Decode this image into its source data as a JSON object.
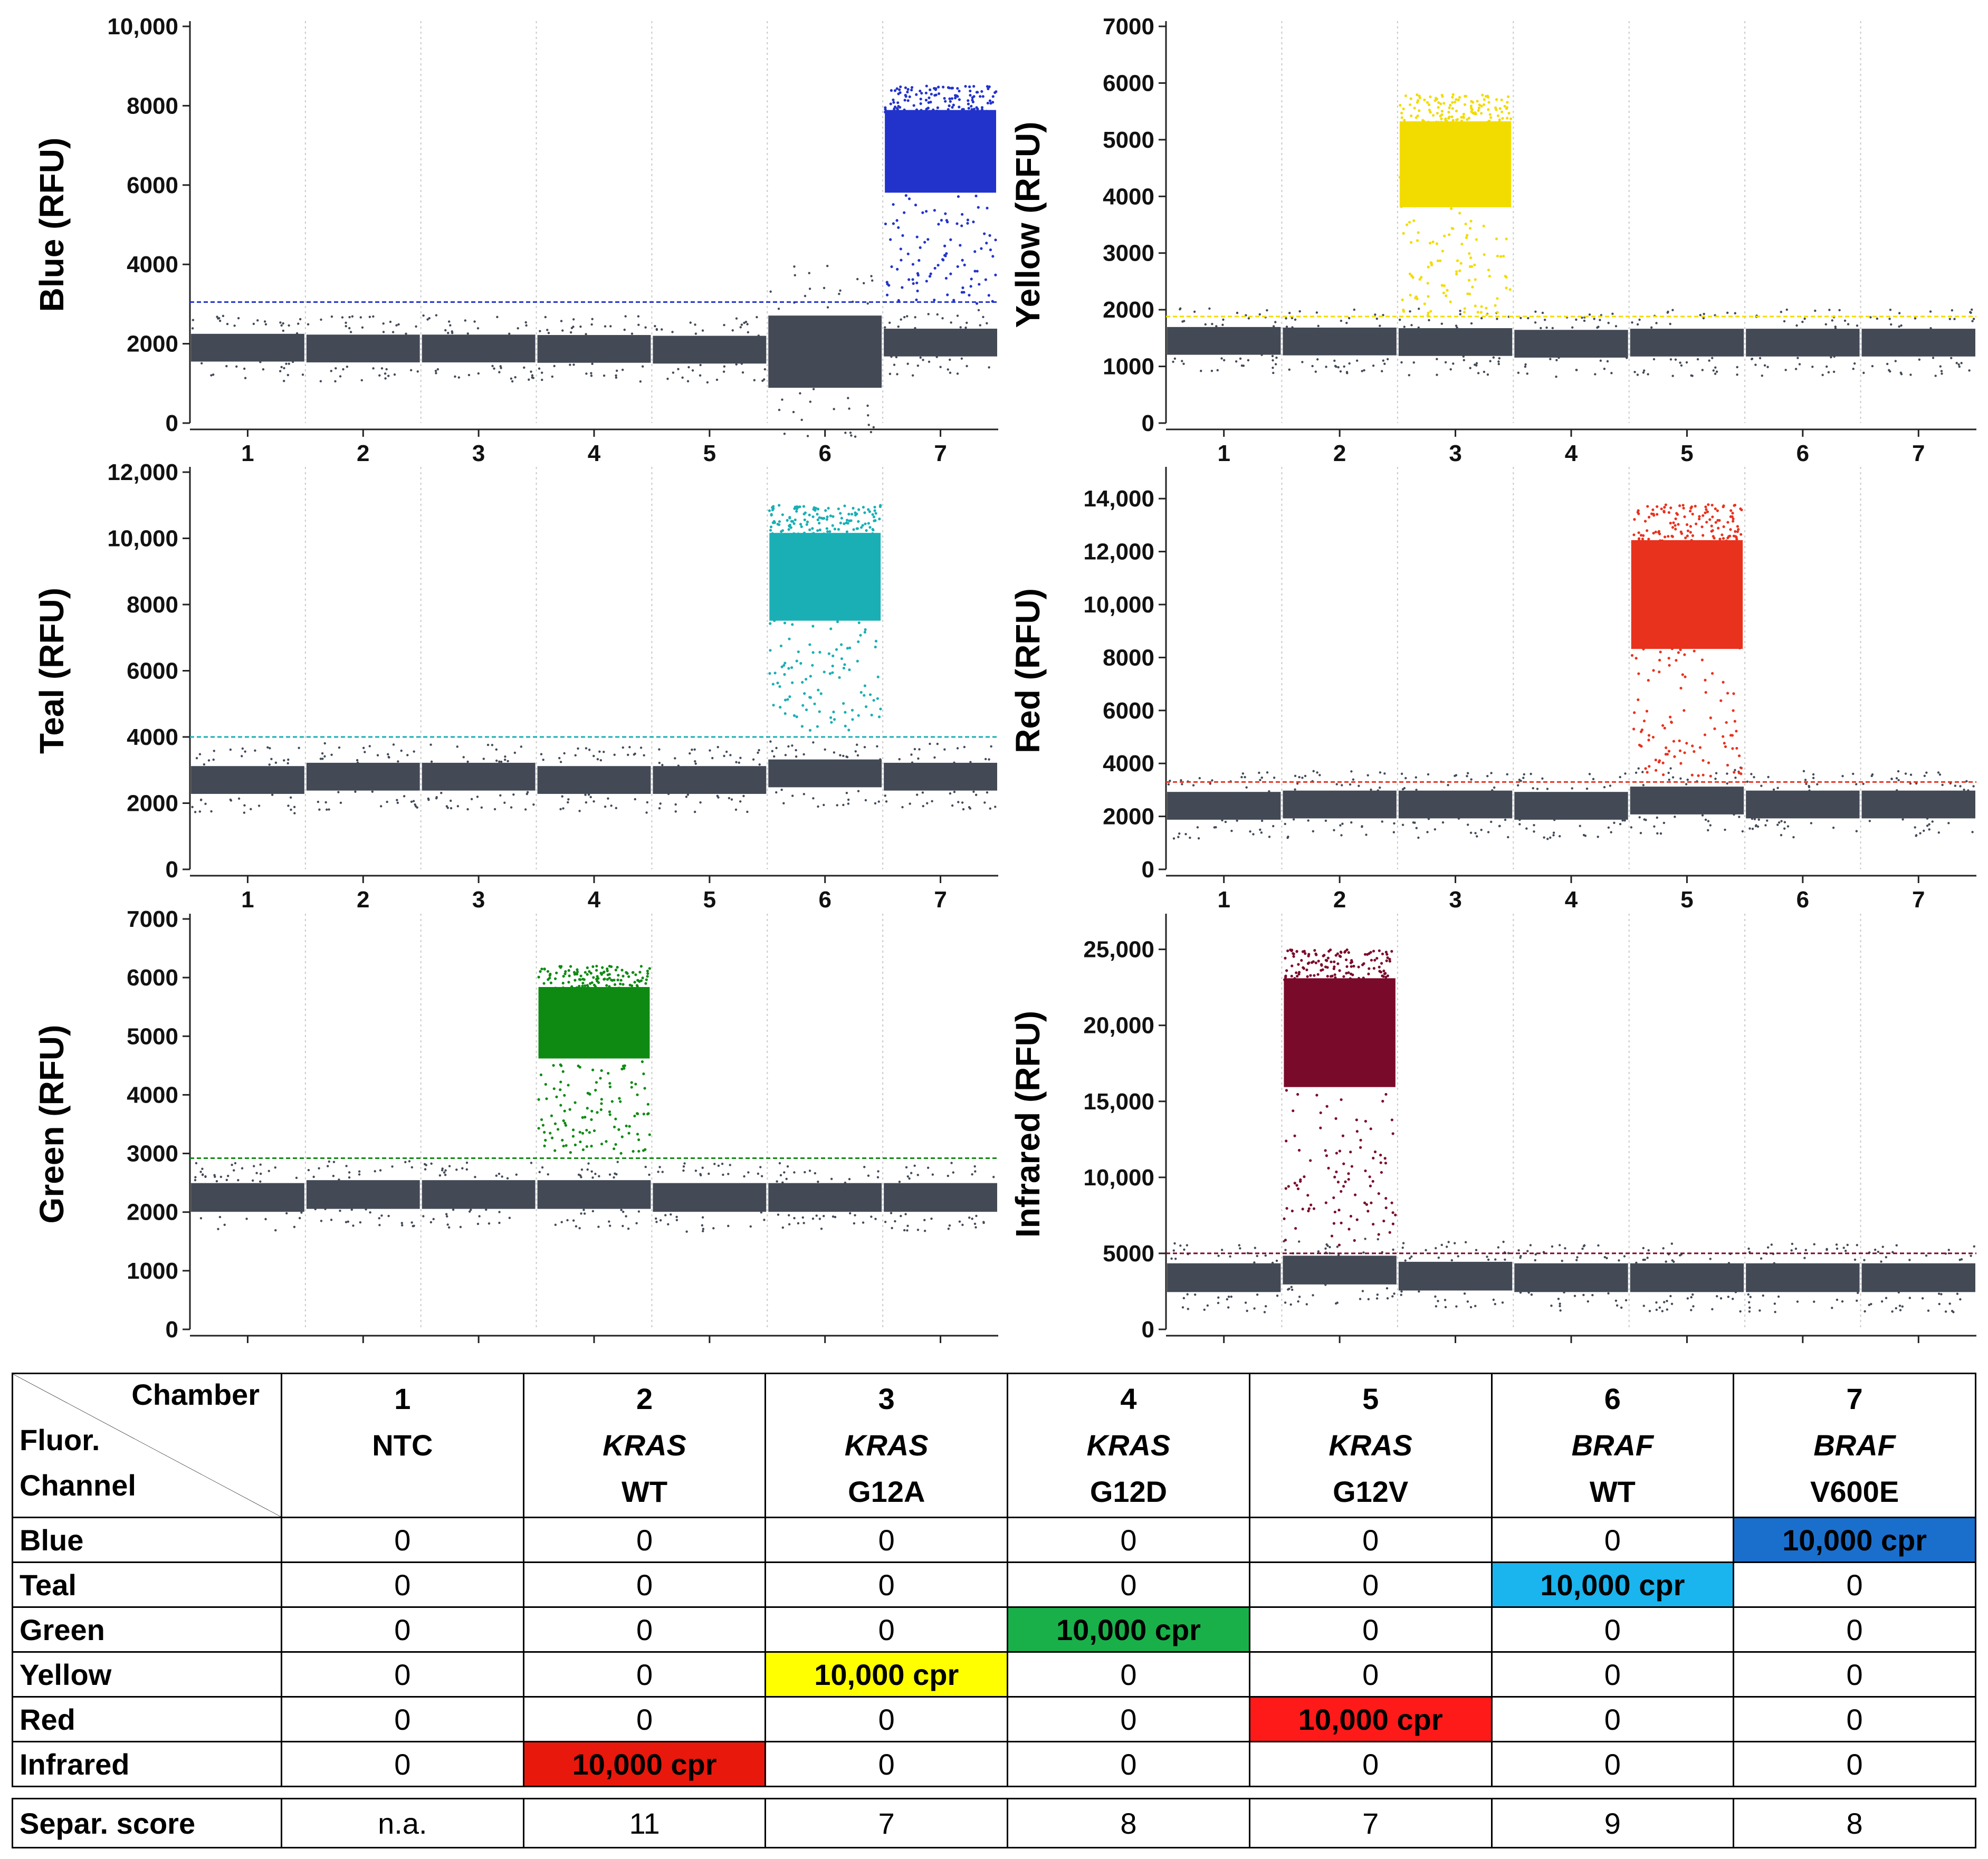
{
  "chart_data": [
    {
      "type": "scatter",
      "ylabel": "Blue (RFU)",
      "color": "#2233cc",
      "ylim": [
        0,
        10000
      ],
      "yticks": [
        "0",
        "2000",
        "4000",
        "6000",
        "8000",
        "10,000"
      ],
      "yticks_values": [
        0,
        2000,
        4000,
        6000,
        8000,
        10000
      ],
      "categories": [
        "1",
        "2",
        "3",
        "4",
        "5",
        "6",
        "7"
      ],
      "threshold": 3050,
      "baseline": [
        1900,
        1880,
        1880,
        1870,
        1850,
        1800,
        2030
      ],
      "positive_chamber": "7",
      "positive_center": 6900,
      "positive_range": [
        3000,
        8500
      ]
    },
    {
      "type": "scatter",
      "ylabel": "Yellow (RFU)",
      "color": "#f2dc00",
      "ylim": [
        0,
        7000
      ],
      "yticks": [
        "0",
        "1000",
        "2000",
        "3000",
        "4000",
        "5000",
        "6000",
        "7000"
      ],
      "yticks_values": [
        0,
        1000,
        2000,
        3000,
        4000,
        5000,
        6000,
        7000
      ],
      "categories": [
        "1",
        "2",
        "3",
        "4",
        "5",
        "6",
        "7"
      ],
      "threshold": 1880,
      "baseline": [
        1450,
        1440,
        1430,
        1400,
        1420,
        1420,
        1420
      ],
      "positive_chamber": "3",
      "positive_center": 4550,
      "positive_range": [
        1900,
        5800
      ]
    },
    {
      "type": "scatter",
      "ylabel": "Teal (RFU)",
      "color": "#1aafb5",
      "ylim": [
        0,
        12000
      ],
      "yticks": [
        "0",
        "2000",
        "4000",
        "6000",
        "8000",
        "10,000",
        "12,000"
      ],
      "yticks_values": [
        0,
        2000,
        4000,
        6000,
        8000,
        10000,
        12000
      ],
      "categories": [
        "1",
        "2",
        "3",
        "4",
        "5",
        "6",
        "7"
      ],
      "threshold": 4000,
      "baseline": [
        2700,
        2800,
        2800,
        2700,
        2700,
        2900,
        2800
      ],
      "positive_chamber": "6",
      "positive_center": 8800,
      "positive_range": [
        4200,
        11000
      ]
    },
    {
      "type": "scatter",
      "ylabel": "Red (RFU)",
      "color": "#e8321e",
      "ylim": [
        0,
        15000
      ],
      "yticks": [
        "0",
        "2000",
        "4000",
        "6000",
        "8000",
        "10,000",
        "12,000",
        "14,000"
      ],
      "yticks_values": [
        0,
        2000,
        4000,
        6000,
        8000,
        10000,
        12000,
        14000
      ],
      "categories": [
        "1",
        "2",
        "3",
        "4",
        "5",
        "6",
        "7"
      ],
      "threshold": 3300,
      "baseline": [
        2400,
        2450,
        2450,
        2400,
        2600,
        2450,
        2450
      ],
      "positive_chamber": "5",
      "positive_center": 10200,
      "positive_range": [
        3500,
        13800
      ]
    },
    {
      "type": "scatter",
      "ylabel": "Green (RFU)",
      "color": "#0e8a12",
      "ylim": [
        0,
        7000
      ],
      "yticks": [
        "0",
        "1000",
        "2000",
        "3000",
        "4000",
        "5000",
        "6000",
        "7000"
      ],
      "yticks_values": [
        0,
        1000,
        2000,
        3000,
        4000,
        5000,
        6000,
        7000
      ],
      "categories": [
        "1",
        "2",
        "3",
        "4",
        "5",
        "6",
        "7"
      ],
      "threshold": 2920,
      "baseline": [
        2250,
        2300,
        2300,
        2300,
        2250,
        2250,
        2250
      ],
      "positive_chamber": "4",
      "positive_center": 5250,
      "positive_range": [
        3000,
        6200
      ]
    },
    {
      "type": "scatter",
      "ylabel": "Infrared (RFU)",
      "color": "#7a0a2a",
      "ylim": [
        0,
        27000
      ],
      "yticks": [
        "0",
        "5000",
        "10,000",
        "15,000",
        "20,000",
        "25,000"
      ],
      "yticks_values": [
        0,
        5000,
        10000,
        15000,
        20000,
        25000
      ],
      "categories": [
        "1",
        "2",
        "3",
        "4",
        "5",
        "6",
        "7"
      ],
      "threshold": 5000,
      "baseline": [
        3400,
        3900,
        3500,
        3400,
        3400,
        3400,
        3400
      ],
      "positive_chamber": "2",
      "positive_center": 20000,
      "positive_range": [
        5500,
        25000
      ]
    }
  ],
  "table": {
    "corner": {
      "top": "Chamber",
      "mid": "Fluor.",
      "bottom": "Channel"
    },
    "columns": [
      {
        "chamber": "1",
        "gene": "NTC",
        "variant": ""
      },
      {
        "chamber": "2",
        "gene": "KRAS",
        "variant": "WT"
      },
      {
        "chamber": "3",
        "gene": "KRAS",
        "variant": "G12A"
      },
      {
        "chamber": "4",
        "gene": "KRAS",
        "variant": "G12D"
      },
      {
        "chamber": "5",
        "gene": "KRAS",
        "variant": "G12V"
      },
      {
        "chamber": "6",
        "gene": "BRAF",
        "variant": "WT"
      },
      {
        "chamber": "7",
        "gene": "BRAF",
        "variant": "V600E"
      }
    ],
    "rows": [
      {
        "label": "Blue",
        "cells": [
          "0",
          "0",
          "0",
          "0",
          "0",
          "0",
          "10,000 cpr"
        ],
        "highlight_color": "#1a6fcc"
      },
      {
        "label": "Teal",
        "cells": [
          "0",
          "0",
          "0",
          "0",
          "0",
          "10,000 cpr",
          "0"
        ],
        "highlight_color": "#1ab4ee"
      },
      {
        "label": "Green",
        "cells": [
          "0",
          "0",
          "0",
          "10,000 cpr",
          "0",
          "0",
          "0"
        ],
        "highlight_color": "#19b04a"
      },
      {
        "label": "Yellow",
        "cells": [
          "0",
          "0",
          "10,000 cpr",
          "0",
          "0",
          "0",
          "0"
        ],
        "highlight_color": "#ffff00"
      },
      {
        "label": "Red",
        "cells": [
          "0",
          "0",
          "0",
          "0",
          "10,000 cpr",
          "0",
          "0"
        ],
        "highlight_color": "#ff1a1a"
      },
      {
        "label": "Infrared",
        "cells": [
          "0",
          "10,000 cpr",
          "0",
          "0",
          "0",
          "0",
          "0"
        ],
        "highlight_color": "#e8180c"
      }
    ],
    "score": {
      "label": "Separ. score",
      "cells": [
        "n.a.",
        "11",
        "7",
        "8",
        "7",
        "9",
        "8"
      ]
    }
  }
}
